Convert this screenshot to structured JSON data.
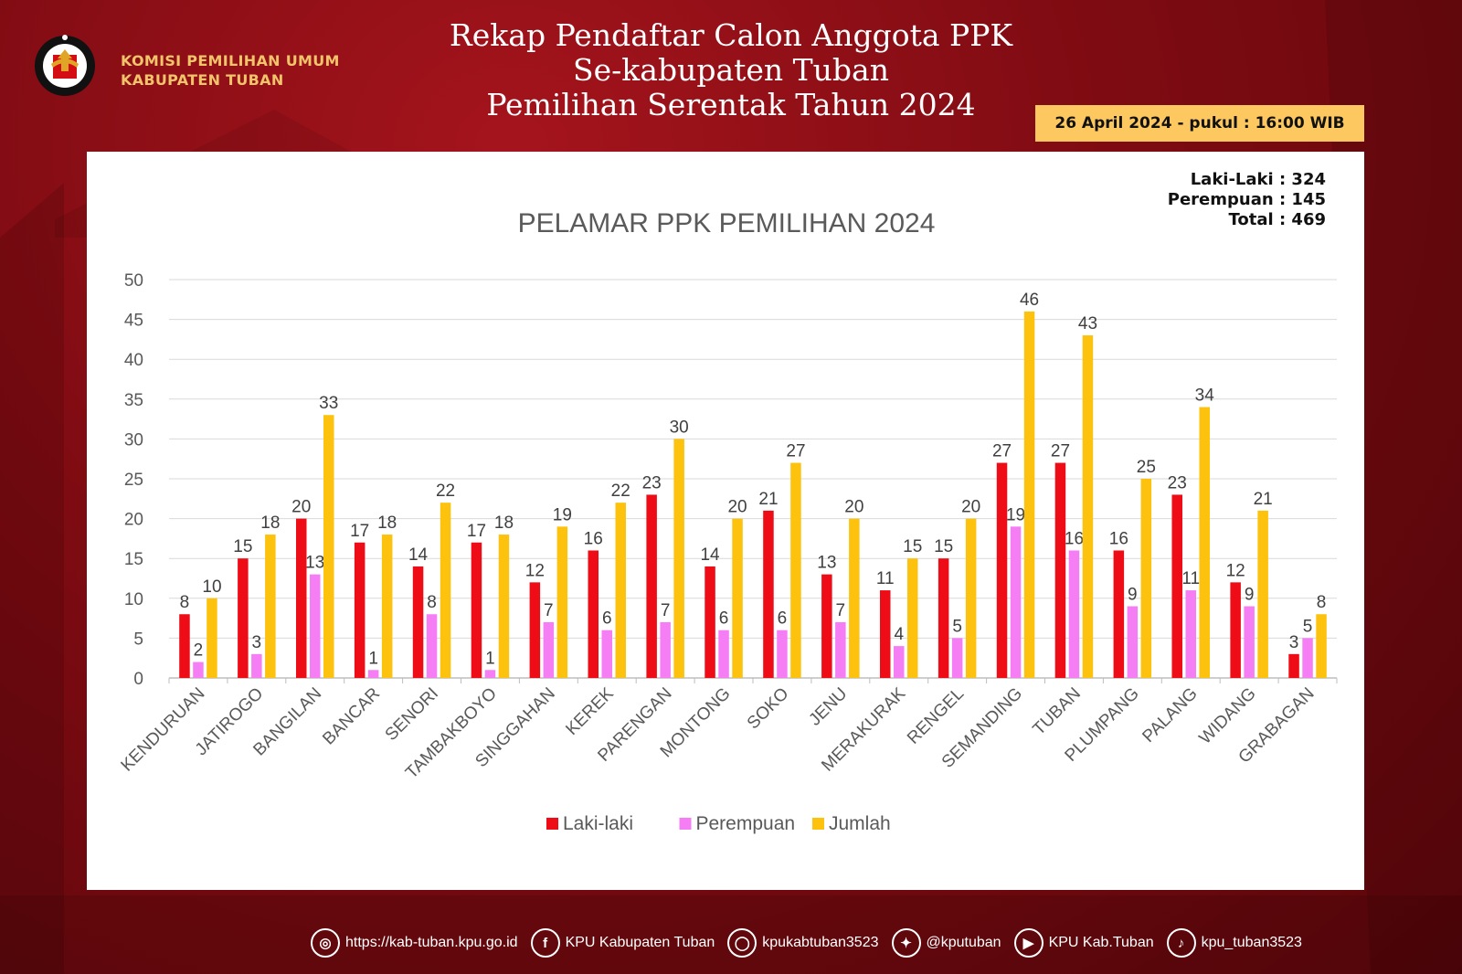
{
  "org": {
    "line1": "KOMISI PEMILIHAN UMUM",
    "line2": "KABUPATEN TUBAN",
    "logo_ring_text": "KOMISI PEMILIHAN UMUM"
  },
  "title": {
    "line1": "Rekap Pendaftar Calon Anggota PPK",
    "line2": "Se-kabupaten Tuban",
    "line3": "Pemilihan Serentak Tahun 2024"
  },
  "date_badge": "26 April 2024 - pukul : 16:00 WIB",
  "summary": {
    "male": "Laki-Laki : 324",
    "female": "Perempuan : 145",
    "total": "Total : 469"
  },
  "colors": {
    "male": "#ee0c16",
    "female": "#f57ef5",
    "total": "#fcc20d",
    "badge": "#fdc85f",
    "org_text": "#f1c36b"
  },
  "chart_data": {
    "type": "bar",
    "title": "PELAMAR PPK PEMILIHAN 2024",
    "xlabel": "",
    "ylabel": "",
    "ylim": [
      0,
      50
    ],
    "y_ticks": [
      0,
      5,
      10,
      15,
      20,
      25,
      30,
      35,
      40,
      45,
      50
    ],
    "grid": true,
    "legend_position": "bottom",
    "categories": [
      "KENDURUAN",
      "JATIROGO",
      "BANGILAN",
      "BANCAR",
      "SENORI",
      "TAMBAKBOYO",
      "SINGGAHAN",
      "KEREK",
      "PARENGAN",
      "MONTONG",
      "SOKO",
      "JENU",
      "MERAKURAK",
      "RENGEL",
      "SEMANDING",
      "TUBAN",
      "PLUMPANG",
      "PALANG",
      "WIDANG",
      "GRABAGAN"
    ],
    "series": [
      {
        "name": "Laki-laki",
        "color": "#ee0c16",
        "values": [
          8,
          15,
          20,
          17,
          14,
          17,
          12,
          16,
          23,
          14,
          21,
          13,
          11,
          15,
          27,
          27,
          16,
          23,
          12,
          3
        ]
      },
      {
        "name": "Perempuan",
        "color": "#f57ef5",
        "values": [
          2,
          3,
          13,
          1,
          8,
          1,
          7,
          6,
          7,
          6,
          6,
          7,
          4,
          5,
          19,
          16,
          9,
          11,
          9,
          5
        ]
      },
      {
        "name": "Jumlah",
        "color": "#fcc20d",
        "values": [
          10,
          18,
          33,
          18,
          22,
          18,
          19,
          22,
          30,
          20,
          27,
          20,
          15,
          20,
          46,
          43,
          25,
          34,
          21,
          8
        ]
      }
    ]
  },
  "footer": {
    "items": [
      {
        "icon": "globe-icon",
        "label": "https://kab-tuban.kpu.go.id"
      },
      {
        "icon": "facebook-icon",
        "label": "KPU Kabupaten Tuban"
      },
      {
        "icon": "instagram-icon",
        "label": "kpukabtuban3523"
      },
      {
        "icon": "twitter-icon",
        "label": "@kputuban"
      },
      {
        "icon": "youtube-icon",
        "label": "KPU Kab.Tuban"
      },
      {
        "icon": "tiktok-icon",
        "label": "kpu_tuban3523"
      }
    ]
  }
}
